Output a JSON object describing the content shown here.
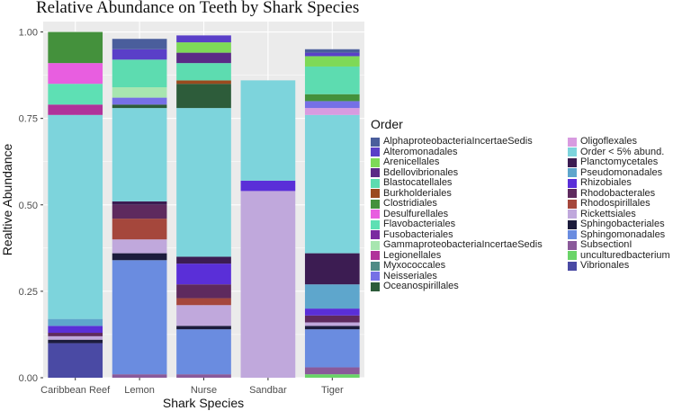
{
  "chart_data": {
    "type": "bar",
    "stacked": true,
    "title": "Relative Abundance on Teeth by Shark Species",
    "xlabel": "Shark Species",
    "ylabel": "Realtive Abundance",
    "ylim": [
      0,
      1.03
    ],
    "yticks": [
      "0.00",
      "0.25",
      "0.50",
      "0.75",
      "1.00"
    ],
    "ytick_values": [
      0,
      0.25,
      0.5,
      0.75,
      1.0
    ],
    "categories": [
      "Caribbean Reef",
      "Lemon",
      "Nurse",
      "Sandbar",
      "Tiger"
    ],
    "legend_title": "Order",
    "legend_position": "right",
    "series": [
      {
        "name": "AlphaproteobacteriaIncertaeSedis",
        "color": "#4a5e9c",
        "values": [
          0,
          0.03,
          0,
          0,
          0.01
        ]
      },
      {
        "name": "Alteromonadales",
        "color": "#5a3fc8",
        "values": [
          0,
          0.03,
          0.02,
          0,
          0.01
        ]
      },
      {
        "name": "Arenicellales",
        "color": "#7ed957",
        "values": [
          0,
          0,
          0.03,
          0,
          0.03
        ]
      },
      {
        "name": "Bdellovibrionales",
        "color": "#5b2a86",
        "values": [
          0,
          0,
          0.03,
          0,
          0
        ]
      },
      {
        "name": "Blastocatellales",
        "color": "#5ddcb0",
        "values": [
          0,
          0.08,
          0.05,
          0,
          0.08
        ]
      },
      {
        "name": "Burkholderiales",
        "color": "#9a4a1e",
        "values": [
          0,
          0,
          0.01,
          0,
          0
        ]
      },
      {
        "name": "Clostridiales",
        "color": "#44913c",
        "values": [
          0.09,
          0,
          0,
          0,
          0.02
        ]
      },
      {
        "name": "Desulfurellales",
        "color": "#e85ee0",
        "values": [
          0.06,
          0,
          0,
          0,
          0
        ]
      },
      {
        "name": "Flavobacteriales",
        "color": "#5ee0b4",
        "values": [
          0.06,
          0,
          0,
          0,
          0
        ]
      },
      {
        "name": "Fusobacteriales",
        "color": "#7a2aa0",
        "values": [
          0,
          0,
          0,
          0,
          0
        ]
      },
      {
        "name": "GammaproteobacteriaIncertaeSedis",
        "color": "#a8e6b0",
        "values": [
          0,
          0.03,
          0,
          0,
          0
        ]
      },
      {
        "name": "Legionellales",
        "color": "#b0329a",
        "values": [
          0.03,
          0,
          0,
          0,
          0
        ]
      },
      {
        "name": "Myxococcales",
        "color": "#4f8c86",
        "values": [
          0,
          0,
          0,
          0,
          0
        ]
      },
      {
        "name": "Neisseriales",
        "color": "#7670e6",
        "values": [
          0,
          0.02,
          0,
          0,
          0.02
        ]
      },
      {
        "name": "Oceanospirillales",
        "color": "#2d5c3a",
        "values": [
          0,
          0.01,
          0.07,
          0,
          0
        ]
      },
      {
        "name": "Oligoflexales",
        "color": "#d89be0",
        "values": [
          0,
          0,
          0,
          0,
          0.02
        ]
      },
      {
        "name": "Order < 5% abund.",
        "color": "#7dd4dc",
        "values": [
          0.59,
          0.27,
          0.43,
          0.29,
          0.4
        ]
      },
      {
        "name": "Planctomycetales",
        "color": "#3c1c52",
        "values": [
          0,
          0.01,
          0.02,
          0,
          0.09
        ]
      },
      {
        "name": "Pseudomonadales",
        "color": "#5ea6cc",
        "values": [
          0.02,
          0,
          0,
          0,
          0.07
        ]
      },
      {
        "name": "Rhizobiales",
        "color": "#5a2fd8",
        "values": [
          0.02,
          0,
          0.06,
          0.03,
          0.02
        ]
      },
      {
        "name": "Rhodobacterales",
        "color": "#5e2a5e",
        "values": [
          0.01,
          0.04,
          0.04,
          0,
          0.02
        ]
      },
      {
        "name": "Rhodospirillales",
        "color": "#a5473c",
        "values": [
          0,
          0.06,
          0.02,
          0,
          0
        ]
      },
      {
        "name": "Rickettsiales",
        "color": "#c0a8dc",
        "values": [
          0.01,
          0.04,
          0.06,
          0.54,
          0.01
        ]
      },
      {
        "name": "Sphingobacteriales",
        "color": "#1c1c3c",
        "values": [
          0.01,
          0.02,
          0.01,
          0,
          0.01
        ]
      },
      {
        "name": "Sphingomonadales",
        "color": "#6a8ce0",
        "values": [
          0,
          0.33,
          0.13,
          0,
          0.11
        ]
      },
      {
        "name": "SubsectionI",
        "color": "#8a5a9a",
        "values": [
          0,
          0.01,
          0.01,
          0,
          0.02
        ]
      },
      {
        "name": "unculturedbacterium",
        "color": "#6ad468",
        "values": [
          0,
          0,
          0,
          0,
          0.01
        ]
      },
      {
        "name": "Vibrionales",
        "color": "#4a4aa4",
        "values": [
          0.1,
          0,
          0,
          0,
          0
        ]
      }
    ]
  }
}
